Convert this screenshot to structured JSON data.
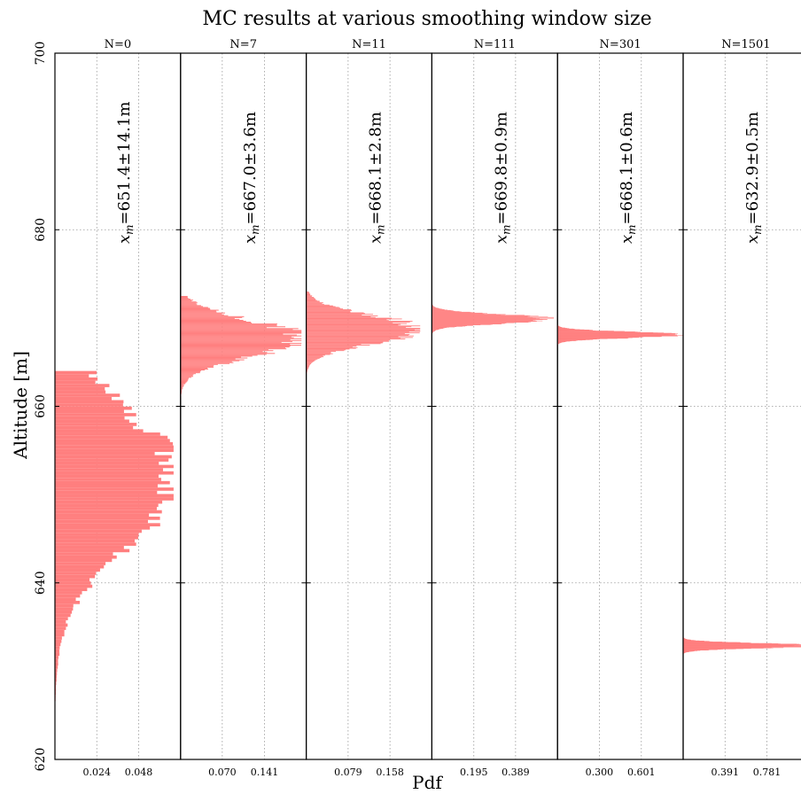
{
  "chart_data": {
    "type": "histogram",
    "orientation": "horizontal",
    "title": "MC results at various smoothing window size",
    "xlabel": "Pdf",
    "ylabel": "Altitude [m]",
    "ylim": [
      620,
      700
    ],
    "y_ticks": [
      "620",
      "640",
      "660",
      "680",
      "700"
    ],
    "y_tick_values": [
      620,
      640,
      660,
      680,
      700
    ],
    "grid": true,
    "bar_color": "#ff7f7f",
    "panels": [
      {
        "name": "N=0",
        "annotation": "x_m=651.4±14.1m",
        "annotation_var": "x",
        "annotation_sub": "m",
        "annotation_value": "=651.4±14.1m",
        "xlim": [
          0,
          0.072
        ],
        "x_ticks": [
          "0.024",
          "0.048"
        ],
        "x_tick_values": [
          0.024,
          0.048
        ],
        "mean": 651.4,
        "std": 14.1,
        "peak_altitude": 652.0,
        "peak_pdf": 0.068,
        "range": [
          620,
          664
        ]
      },
      {
        "name": "N=7",
        "annotation": "x_m=667.0±3.6m",
        "annotation_var": "x",
        "annotation_sub": "m",
        "annotation_value": "=667.0±3.6m",
        "xlim": [
          0,
          0.211
        ],
        "x_ticks": [
          "0.070",
          "0.141"
        ],
        "x_tick_values": [
          0.07,
          0.141
        ],
        "mean": 667.0,
        "std": 3.6,
        "peak_altitude": 667.7,
        "peak_pdf": 0.203,
        "range": [
          660,
          672.5
        ]
      },
      {
        "name": "N=11",
        "annotation": "x_m=668.1±2.8m",
        "annotation_var": "x",
        "annotation_sub": "m",
        "annotation_value": "=668.1±2.8m",
        "xlim": [
          0,
          0.237
        ],
        "x_ticks": [
          "0.079",
          "0.158"
        ],
        "x_tick_values": [
          0.079,
          0.158
        ],
        "mean": 668.1,
        "std": 2.8,
        "peak_altitude": 668.7,
        "peak_pdf": 0.215,
        "range": [
          662.5,
          673
        ]
      },
      {
        "name": "N=111",
        "annotation": "x_m=669.8±0.9m",
        "annotation_var": "x",
        "annotation_sub": "m",
        "annotation_value": "=669.8±0.9m",
        "xlim": [
          0,
          0.584
        ],
        "x_ticks": [
          "0.195",
          "0.389"
        ],
        "x_tick_values": [
          0.195,
          0.389
        ],
        "mean": 669.8,
        "std": 0.9,
        "peak_altitude": 669.9,
        "peak_pdf": 0.567,
        "range": [
          667.8,
          671.8
        ]
      },
      {
        "name": "N=301",
        "annotation": "x_m=668.1±0.6m",
        "annotation_var": "x",
        "annotation_sub": "m",
        "annotation_value": "=668.1±0.6m",
        "xlim": [
          0,
          0.901
        ],
        "x_ticks": [
          "0.300",
          "0.601"
        ],
        "x_tick_values": [
          0.3,
          0.601
        ],
        "mean": 668.1,
        "std": 0.6,
        "peak_altitude": 668.1,
        "peak_pdf": 0.898,
        "range": [
          667,
          669.8
        ]
      },
      {
        "name": "N=1501",
        "annotation": "x_m=632.9±0.5m",
        "annotation_var": "x",
        "annotation_sub": "m",
        "annotation_value": "=632.9±0.5m",
        "xlim": [
          0,
          1.172
        ],
        "x_ticks": [
          "0.391",
          "0.781"
        ],
        "x_tick_values": [
          0.391,
          0.781
        ],
        "mean": 632.9,
        "std": 0.5,
        "peak_altitude": 632.9,
        "peak_pdf": 1.172,
        "range": [
          632,
          634.2
        ]
      }
    ]
  }
}
